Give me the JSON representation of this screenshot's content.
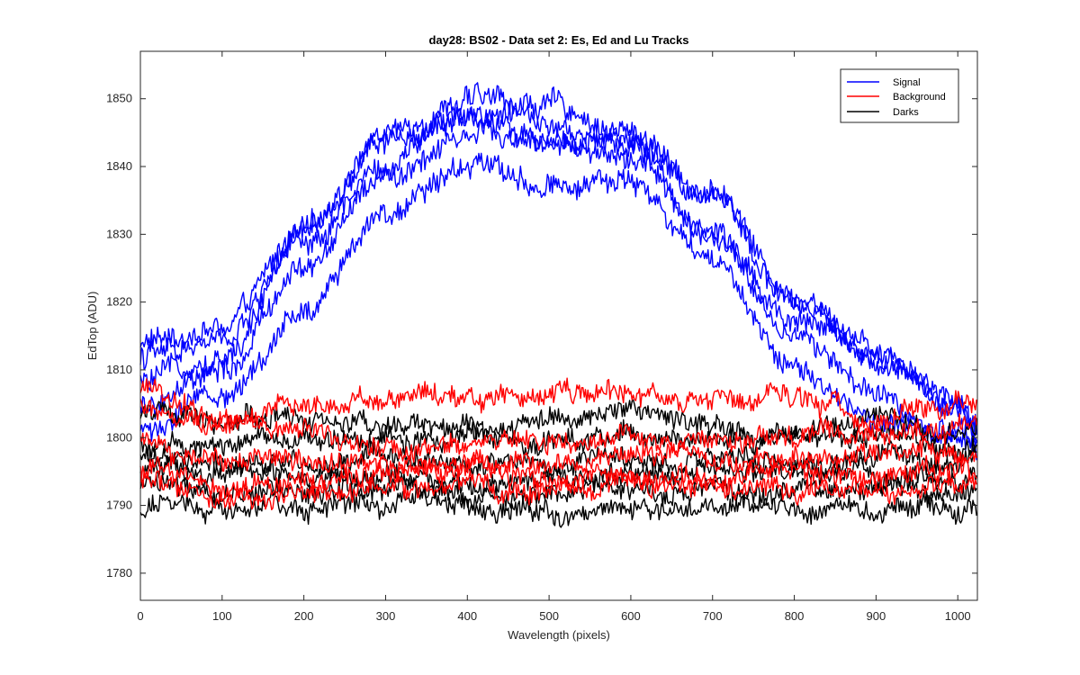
{
  "chart_data": {
    "type": "line",
    "title": "day28: BS02 - Data set 2: Es, Ed and Lu Tracks",
    "xlabel": "Wavelength (pixels)",
    "ylabel": "EdTop (ADU)",
    "xlim": [
      0,
      1024
    ],
    "ylim": [
      1776,
      1857
    ],
    "xticks": [
      0,
      100,
      200,
      300,
      400,
      500,
      600,
      700,
      800,
      900,
      1000
    ],
    "yticks": [
      1780,
      1790,
      1800,
      1810,
      1820,
      1830,
      1840,
      1850
    ],
    "legend_position": "top-right",
    "grid": false,
    "legend": [
      {
        "label": "Signal",
        "color": "#0000ff"
      },
      {
        "label": "Background",
        "color": "#ff0000"
      },
      {
        "label": "Darks",
        "color": "#000000"
      }
    ],
    "x": [
      0,
      100,
      200,
      300,
      400,
      500,
      600,
      700,
      800,
      900,
      1000,
      1024
    ],
    "series": [
      {
        "group": "Signal",
        "color": "#0000ff",
        "values": [
          1814,
          1816,
          1830,
          1845,
          1850,
          1849,
          1845,
          1836,
          1821,
          1813,
          1805,
          1800
        ]
      },
      {
        "group": "Signal",
        "color": "#0000ff",
        "values": [
          1812,
          1814,
          1830,
          1843,
          1848,
          1847,
          1843,
          1835,
          1820,
          1812,
          1805,
          1801
        ]
      },
      {
        "group": "Signal",
        "color": "#0000ff",
        "values": [
          1808,
          1812,
          1829,
          1840,
          1848,
          1844,
          1843,
          1830,
          1818,
          1811,
          1804,
          1799
        ]
      },
      {
        "group": "Signal",
        "color": "#0000ff",
        "values": [
          1804,
          1809,
          1825,
          1838,
          1845,
          1843,
          1841,
          1829,
          1815,
          1806,
          1800,
          1798
        ]
      },
      {
        "group": "Signal",
        "color": "#0000ff",
        "values": [
          1801,
          1806,
          1818,
          1834,
          1841,
          1838,
          1837,
          1826,
          1810,
          1803,
          1801,
          1797
        ]
      },
      {
        "group": "Background",
        "color": "#ff0000",
        "values": [
          1807,
          1803,
          1805,
          1806,
          1806,
          1807,
          1806,
          1805,
          1805,
          1803,
          1805,
          1805
        ]
      },
      {
        "group": "Background",
        "color": "#ff0000",
        "values": [
          1804,
          1801,
          1801,
          1798,
          1799,
          1800,
          1800,
          1799,
          1800,
          1801,
          1802,
          1803
        ]
      },
      {
        "group": "Background",
        "color": "#ff0000",
        "values": [
          1799,
          1796,
          1797,
          1796,
          1797,
          1796,
          1797,
          1797,
          1798,
          1797,
          1798,
          1798
        ]
      },
      {
        "group": "Background",
        "color": "#ff0000",
        "values": [
          1796,
          1793,
          1794,
          1795,
          1795,
          1794,
          1794,
          1795,
          1795,
          1794,
          1795,
          1795
        ]
      },
      {
        "group": "Background",
        "color": "#ff0000",
        "values": [
          1794,
          1792,
          1792,
          1793,
          1793,
          1792,
          1793,
          1793,
          1793,
          1792,
          1793,
          1793
        ]
      },
      {
        "group": "Darks",
        "color": "#000000",
        "values": [
          1804,
          1803,
          1803,
          1802,
          1801,
          1803,
          1804,
          1802,
          1801,
          1803,
          1801,
          1802
        ]
      },
      {
        "group": "Darks",
        "color": "#000000",
        "values": [
          1799,
          1799,
          1800,
          1800,
          1800,
          1799,
          1800,
          1799,
          1800,
          1800,
          1799,
          1799
        ]
      },
      {
        "group": "Darks",
        "color": "#000000",
        "values": [
          1797,
          1796,
          1796,
          1797,
          1796,
          1796,
          1797,
          1797,
          1796,
          1797,
          1796,
          1797
        ]
      },
      {
        "group": "Darks",
        "color": "#000000",
        "values": [
          1795,
          1794,
          1794,
          1795,
          1794,
          1794,
          1794,
          1795,
          1795,
          1794,
          1794,
          1795
        ]
      },
      {
        "group": "Darks",
        "color": "#000000",
        "values": [
          1793,
          1792,
          1792,
          1792,
          1792,
          1792,
          1792,
          1792,
          1792,
          1792,
          1792,
          1792
        ]
      },
      {
        "group": "Darks",
        "color": "#000000",
        "values": [
          1790,
          1790,
          1790,
          1790,
          1790,
          1789,
          1790,
          1790,
          1790,
          1790,
          1790,
          1790
        ]
      }
    ]
  }
}
